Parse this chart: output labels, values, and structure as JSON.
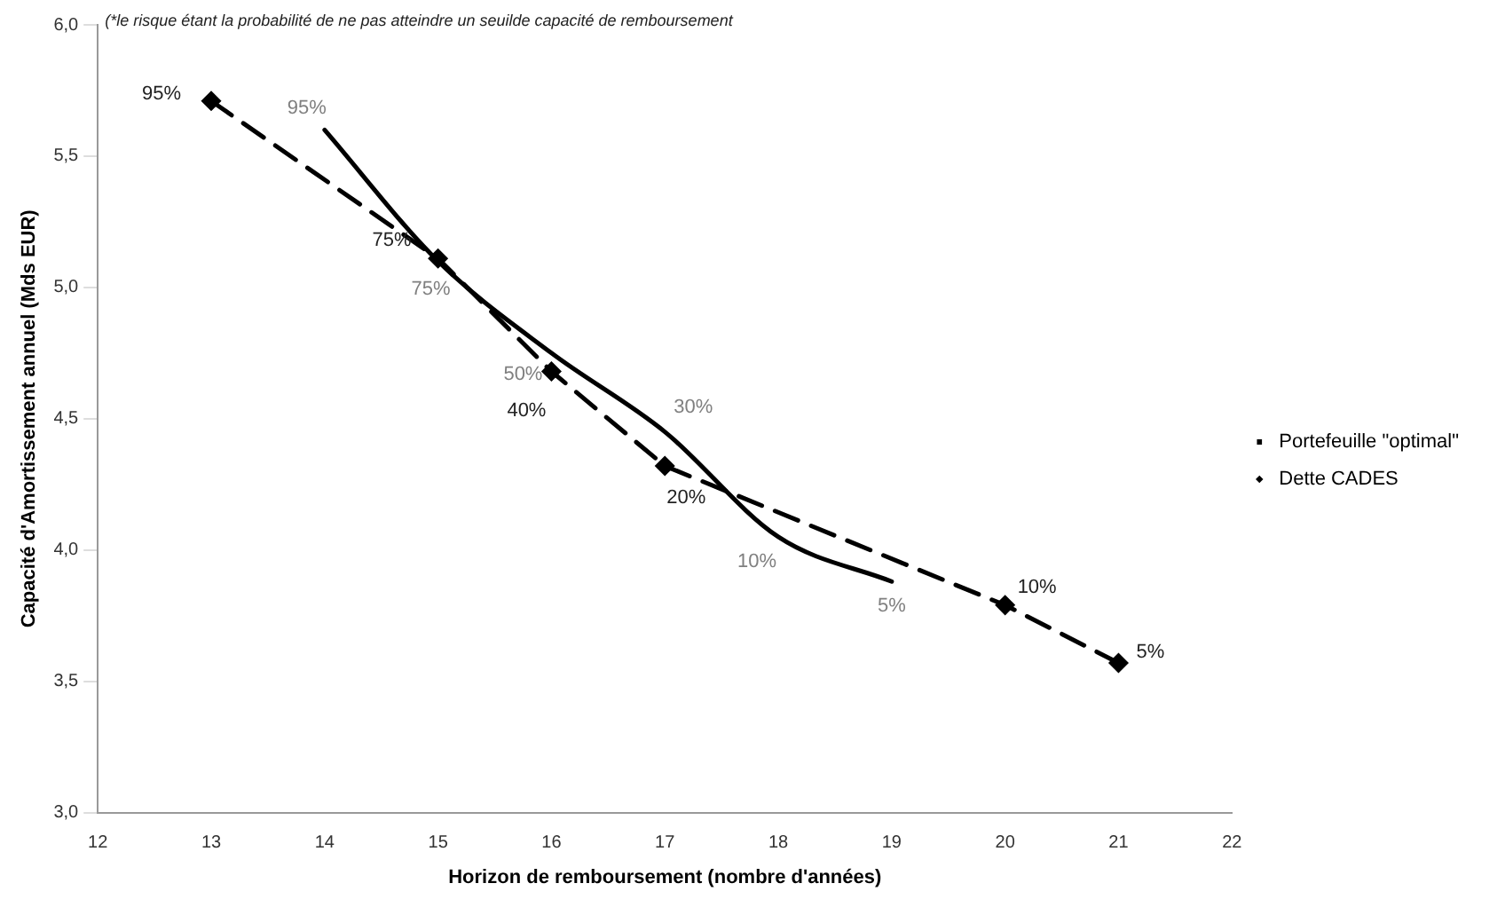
{
  "chart_data": {
    "type": "line",
    "xlabel": "Horizon de remboursement (nombre d'années)",
    "ylabel": "Capacité d'Amortissement annuel (Mds EUR)",
    "annotations": [
      "(*le risque étant la probabilité de ne pas atteindre un seuilde capacité de remboursement",
      {
        "text": "95%",
        "x": 14,
        "y": 5.6
      },
      {
        "text": "75%",
        "x": 15,
        "y": 5.1
      },
      {
        "text": "50%",
        "x": 16,
        "y": 4.75
      },
      {
        "text": "30%",
        "x": 17,
        "y": 4.45
      },
      {
        "text": "10%",
        "x": 18,
        "y": 4.05
      },
      {
        "text": "5%",
        "x": 19,
        "y": 3.88
      },
      {
        "text": "95%",
        "x": 13,
        "y": 5.71
      },
      {
        "text": "75%",
        "x": 15,
        "y": 5.11
      },
      {
        "text": "40%",
        "x": 16,
        "y": 4.68
      },
      {
        "text": "20%",
        "x": 17,
        "y": 4.32
      },
      {
        "text": "10%",
        "x": 20,
        "y": 3.79
      },
      {
        "text": "5%",
        "x": 21,
        "y": 3.57
      }
    ],
    "xlim": [
      12,
      22
    ],
    "xticks": [
      12,
      13,
      14,
      15,
      16,
      17,
      18,
      19,
      20,
      21,
      22
    ],
    "ylim": [
      3,
      6
    ],
    "yticks": [
      {
        "value": 3,
        "label": "3,0"
      },
      {
        "value": 3.5,
        "label": "3,5"
      },
      {
        "value": 4,
        "label": "4,0"
      },
      {
        "value": 4.5,
        "label": "4,5"
      },
      {
        "value": 5,
        "label": "5,0"
      },
      {
        "value": 5.5,
        "label": "5,5"
      },
      {
        "value": 6,
        "label": "6,0"
      }
    ],
    "grid": false,
    "legend": "right",
    "series": [
      {
        "name": "Portefeuille \"optimal\"",
        "color": "#000000",
        "marker": "none",
        "line_style": "solid",
        "x": [
          14,
          15,
          16,
          17,
          18,
          19
        ],
        "values": [
          5.6,
          5.1,
          4.75,
          4.45,
          4.05,
          3.88
        ]
      },
      {
        "name": "Dette CADES",
        "color": "#000000",
        "marker": "diamond",
        "line_style": "dashed",
        "x": [
          13,
          15,
          16,
          17,
          20,
          21
        ],
        "values": [
          5.71,
          5.11,
          4.68,
          4.32,
          3.79,
          3.57
        ]
      }
    ]
  }
}
